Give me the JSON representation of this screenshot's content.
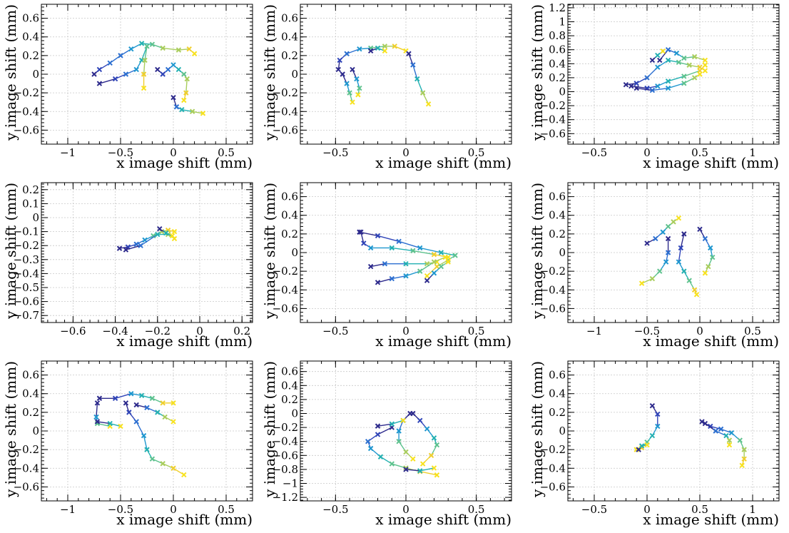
{
  "chart_data": [
    {
      "type": "scatter",
      "xlabel": "x image shift (mm)",
      "ylabel": "y image shift (mm)",
      "xlim": [
        -1.25,
        0.75
      ],
      "ylim": [
        -0.75,
        0.75
      ],
      "xticks": [
        -1,
        -0.5,
        0,
        0.5
      ],
      "yticks": [
        -0.6,
        -0.4,
        -0.2,
        0,
        0.2,
        0.4,
        0.6
      ],
      "grid": true,
      "tracks": [
        [
          [
            -0.75,
            0.0
          ],
          [
            -0.7,
            0.05
          ],
          [
            -0.6,
            0.12
          ],
          [
            -0.5,
            0.2
          ],
          [
            -0.4,
            0.27
          ],
          [
            -0.3,
            0.33
          ],
          [
            -0.2,
            0.32
          ],
          [
            -0.1,
            0.28
          ],
          [
            0.05,
            0.26
          ],
          [
            0.15,
            0.27
          ],
          [
            0.2,
            0.22
          ]
        ],
        [
          [
            -0.7,
            -0.1
          ],
          [
            -0.55,
            -0.05
          ],
          [
            -0.45,
            0.0
          ],
          [
            -0.35,
            0.05
          ],
          [
            -0.3,
            0.15
          ],
          [
            -0.25,
            0.3
          ],
          [
            -0.27,
            0.15
          ],
          [
            -0.28,
            0.0
          ],
          [
            -0.28,
            -0.15
          ]
        ],
        [
          [
            -0.15,
            0.05
          ],
          [
            -0.1,
            0.0
          ],
          [
            -0.05,
            0.05
          ],
          [
            0.0,
            0.1
          ],
          [
            0.05,
            0.05
          ],
          [
            0.1,
            0.0
          ],
          [
            0.13,
            -0.05
          ],
          [
            0.12,
            -0.2
          ],
          [
            0.1,
            -0.28
          ]
        ],
        [
          [
            0.0,
            -0.25
          ],
          [
            0.03,
            -0.35
          ],
          [
            0.08,
            -0.38
          ],
          [
            0.18,
            -0.4
          ],
          [
            0.28,
            -0.42
          ]
        ]
      ]
    },
    {
      "type": "scatter",
      "xlabel": "x image shift (mm)",
      "ylabel": "y image shift (mm)",
      "xlim": [
        -0.75,
        0.75
      ],
      "ylim": [
        -0.75,
        0.75
      ],
      "xticks": [
        -0.5,
        0,
        0.5
      ],
      "yticks": [
        -0.6,
        -0.4,
        -0.2,
        0,
        0.2,
        0.4,
        0.6
      ],
      "grid": true,
      "tracks": [
        [
          [
            -0.48,
            0.05
          ],
          [
            -0.47,
            0.15
          ],
          [
            -0.42,
            0.22
          ],
          [
            -0.33,
            0.27
          ],
          [
            -0.25,
            0.28
          ],
          [
            -0.15,
            0.3
          ],
          [
            -0.08,
            0.3
          ],
          [
            0.0,
            0.25
          ]
        ],
        [
          [
            -0.45,
            0.0
          ],
          [
            -0.42,
            -0.1
          ],
          [
            -0.4,
            -0.2
          ],
          [
            -0.38,
            -0.3
          ]
        ],
        [
          [
            -0.38,
            0.05
          ],
          [
            -0.35,
            -0.05
          ],
          [
            -0.33,
            -0.15
          ],
          [
            -0.34,
            -0.22
          ]
        ],
        [
          [
            0.02,
            0.22
          ],
          [
            0.05,
            0.1
          ],
          [
            0.08,
            -0.05
          ],
          [
            0.12,
            -0.2
          ],
          [
            0.16,
            -0.32
          ]
        ],
        [
          [
            -0.25,
            0.25
          ],
          [
            -0.2,
            0.28
          ],
          [
            -0.15,
            0.25
          ]
        ]
      ]
    },
    {
      "type": "scatter",
      "xlabel": "x image shift (mm)",
      "ylabel": "y image shift (mm)",
      "xlim": [
        -0.75,
        1.25
      ],
      "ylim": [
        -0.75,
        1.25
      ],
      "xticks": [
        -0.5,
        0,
        0.5,
        1
      ],
      "yticks": [
        -0.6,
        -0.4,
        -0.2,
        0,
        0.2,
        0.4,
        0.6,
        0.8,
        1,
        1.2
      ],
      "grid": true,
      "tracks": [
        [
          [
            -0.2,
            0.1
          ],
          [
            -0.1,
            0.12
          ],
          [
            0.0,
            0.2
          ],
          [
            0.1,
            0.35
          ],
          [
            0.2,
            0.45
          ],
          [
            0.3,
            0.42
          ],
          [
            0.4,
            0.38
          ],
          [
            0.5,
            0.35
          ],
          [
            0.55,
            0.3
          ]
        ],
        [
          [
            -0.15,
            0.08
          ],
          [
            0.0,
            0.05
          ],
          [
            0.1,
            0.08
          ],
          [
            0.2,
            0.15
          ],
          [
            0.35,
            0.22
          ],
          [
            0.5,
            0.3
          ],
          [
            0.55,
            0.38
          ]
        ],
        [
          [
            -0.1,
            0.05
          ],
          [
            0.05,
            0.02
          ],
          [
            0.2,
            0.05
          ],
          [
            0.35,
            0.12
          ],
          [
            0.45,
            0.2
          ],
          [
            0.5,
            0.25
          ]
        ],
        [
          [
            0.12,
            0.45
          ],
          [
            0.2,
            0.6
          ],
          [
            0.28,
            0.55
          ],
          [
            0.35,
            0.48
          ],
          [
            0.45,
            0.5
          ],
          [
            0.55,
            0.45
          ]
        ],
        [
          [
            0.05,
            0.45
          ],
          [
            0.1,
            0.52
          ],
          [
            0.15,
            0.58
          ]
        ]
      ]
    },
    {
      "type": "scatter",
      "xlabel": "x image shift (mm)",
      "ylabel": "y image shift (mm)",
      "xlim": [
        -0.75,
        0.25
      ],
      "ylim": [
        -0.75,
        0.25
      ],
      "xticks": [
        -0.6,
        -0.4,
        -0.2,
        0,
        0.2
      ],
      "yticks": [
        -0.7,
        -0.6,
        -0.5,
        -0.4,
        -0.3,
        -0.2,
        -0.1,
        0,
        0.1,
        0.2
      ],
      "grid": true,
      "tracks": [
        [
          [
            -0.38,
            -0.22
          ],
          [
            -0.34,
            -0.21
          ],
          [
            -0.3,
            -0.19
          ],
          [
            -0.26,
            -0.16
          ],
          [
            -0.22,
            -0.13
          ],
          [
            -0.18,
            -0.1
          ],
          [
            -0.15,
            -0.09
          ],
          [
            -0.12,
            -0.1
          ]
        ],
        [
          [
            -0.35,
            -0.23
          ],
          [
            -0.28,
            -0.2
          ],
          [
            -0.2,
            -0.12
          ],
          [
            -0.15,
            -0.12
          ],
          [
            -0.12,
            -0.15
          ]
        ],
        [
          [
            -0.19,
            -0.08
          ],
          [
            -0.16,
            -0.11
          ],
          [
            -0.13,
            -0.13
          ]
        ]
      ]
    },
    {
      "type": "scatter",
      "xlabel": "x image shift (mm)",
      "ylabel": "y image shift (mm)",
      "xlim": [
        -0.75,
        0.75
      ],
      "ylim": [
        -0.75,
        0.75
      ],
      "xticks": [
        -0.5,
        0,
        0.5
      ],
      "yticks": [
        -0.6,
        -0.4,
        -0.2,
        0,
        0.2,
        0.4,
        0.6
      ],
      "grid": true,
      "tracks": [
        [
          [
            -0.33,
            0.22
          ],
          [
            -0.2,
            0.18
          ],
          [
            -0.05,
            0.12
          ],
          [
            0.1,
            0.05
          ],
          [
            0.25,
            0.0
          ],
          [
            0.35,
            -0.03
          ],
          [
            0.3,
            -0.08
          ],
          [
            0.22,
            -0.15
          ],
          [
            0.15,
            -0.25
          ]
        ],
        [
          [
            -0.32,
            0.22
          ],
          [
            -0.3,
            0.1
          ],
          [
            -0.25,
            0.05
          ],
          [
            -0.1,
            0.05
          ],
          [
            0.05,
            0.02
          ],
          [
            0.2,
            -0.02
          ],
          [
            0.3,
            -0.05
          ]
        ],
        [
          [
            -0.25,
            -0.15
          ],
          [
            -0.15,
            -0.12
          ],
          [
            0.0,
            -0.12
          ],
          [
            0.15,
            -0.12
          ],
          [
            0.22,
            -0.1
          ]
        ],
        [
          [
            -0.2,
            -0.32
          ],
          [
            -0.1,
            -0.28
          ],
          [
            0.0,
            -0.25
          ],
          [
            0.1,
            -0.2
          ],
          [
            0.2,
            -0.1
          ],
          [
            0.28,
            -0.05
          ]
        ],
        [
          [
            0.15,
            -0.3
          ],
          [
            0.2,
            -0.22
          ],
          [
            0.25,
            -0.15
          ],
          [
            0.3,
            -0.1
          ]
        ]
      ]
    },
    {
      "type": "scatter",
      "xlabel": "x image shift (mm)",
      "ylabel": "y image shift (mm)",
      "xlim": [
        -1.25,
        0.75
      ],
      "ylim": [
        -0.75,
        0.75
      ],
      "xticks": [
        -1,
        -0.5,
        0,
        0.5
      ],
      "yticks": [
        -0.6,
        -0.4,
        -0.2,
        0,
        0.2,
        0.4,
        0.6
      ],
      "grid": true,
      "tracks": [
        [
          [
            -0.5,
            0.1
          ],
          [
            -0.42,
            0.15
          ],
          [
            -0.35,
            0.22
          ],
          [
            -0.3,
            0.28
          ],
          [
            -0.25,
            0.33
          ],
          [
            -0.2,
            0.37
          ]
        ],
        [
          [
            -0.3,
            0.15
          ],
          [
            -0.3,
            0.0
          ],
          [
            -0.32,
            -0.1
          ],
          [
            -0.38,
            -0.2
          ],
          [
            -0.45,
            -0.28
          ],
          [
            -0.55,
            -0.33
          ]
        ],
        [
          [
            -0.15,
            0.2
          ],
          [
            -0.18,
            0.05
          ],
          [
            -0.2,
            -0.1
          ],
          [
            -0.15,
            -0.2
          ],
          [
            -0.1,
            -0.3
          ],
          [
            -0.05,
            -0.4
          ],
          [
            -0.03,
            -0.45
          ]
        ],
        [
          [
            0.0,
            0.25
          ],
          [
            0.05,
            0.15
          ],
          [
            0.1,
            0.05
          ],
          [
            0.12,
            -0.05
          ],
          [
            0.08,
            -0.15
          ],
          [
            0.05,
            -0.22
          ]
        ]
      ]
    },
    {
      "type": "scatter",
      "xlabel": "x image shift (mm)",
      "ylabel": "y image shift (mm)",
      "xlim": [
        -1.25,
        0.75
      ],
      "ylim": [
        -0.75,
        0.75
      ],
      "xticks": [
        -1,
        -0.5,
        0,
        0.5
      ],
      "yticks": [
        -0.6,
        -0.4,
        -0.2,
        0,
        0.2,
        0.4,
        0.6
      ],
      "grid": true,
      "tracks": [
        [
          [
            -0.7,
            0.35
          ],
          [
            -0.55,
            0.35
          ],
          [
            -0.4,
            0.4
          ],
          [
            -0.3,
            0.38
          ],
          [
            -0.2,
            0.35
          ],
          [
            -0.1,
            0.3
          ],
          [
            0.0,
            0.3
          ]
        ],
        [
          [
            -0.72,
            0.3
          ],
          [
            -0.73,
            0.15
          ],
          [
            -0.72,
            0.08
          ],
          [
            -0.6,
            0.05
          ]
        ],
        [
          [
            -0.45,
            0.3
          ],
          [
            -0.42,
            0.2
          ],
          [
            -0.35,
            0.1
          ],
          [
            -0.28,
            -0.05
          ],
          [
            -0.25,
            -0.2
          ],
          [
            -0.2,
            -0.3
          ],
          [
            -0.1,
            -0.35
          ],
          [
            0.0,
            -0.4
          ],
          [
            0.1,
            -0.47
          ]
        ],
        [
          [
            -0.35,
            0.28
          ],
          [
            -0.25,
            0.25
          ],
          [
            -0.15,
            0.2
          ],
          [
            -0.08,
            0.15
          ],
          [
            0.0,
            0.1
          ]
        ],
        [
          [
            -0.72,
            0.1
          ],
          [
            -0.6,
            0.08
          ],
          [
            -0.5,
            0.05
          ]
        ]
      ]
    },
    {
      "type": "scatter",
      "xlabel": "x image shift (mm)",
      "ylabel": "y image shift (mm)",
      "xlim": [
        -0.75,
        0.75
      ],
      "ylim": [
        -1.25,
        0.75
      ],
      "xticks": [
        -0.5,
        0,
        0.5
      ],
      "yticks": [
        -1.2,
        -1,
        -0.8,
        -0.6,
        -0.4,
        -0.2,
        0,
        0.2,
        0.4,
        0.6
      ],
      "grid": true,
      "tracks": [
        [
          [
            -0.1,
            -0.2
          ],
          [
            -0.2,
            -0.3
          ],
          [
            -0.27,
            -0.4
          ],
          [
            -0.25,
            -0.5
          ],
          [
            -0.18,
            -0.62
          ],
          [
            -0.1,
            -0.72
          ],
          [
            0.0,
            -0.78
          ],
          [
            0.1,
            -0.83
          ],
          [
            0.22,
            -0.88
          ]
        ],
        [
          [
            0.03,
            0.0
          ],
          [
            -0.02,
            -0.1
          ],
          [
            -0.05,
            -0.25
          ],
          [
            -0.05,
            -0.4
          ],
          [
            0.0,
            -0.55
          ],
          [
            0.05,
            -0.65
          ]
        ],
        [
          [
            0.05,
            0.0
          ],
          [
            0.1,
            -0.1
          ],
          [
            0.15,
            -0.22
          ],
          [
            0.2,
            -0.35
          ],
          [
            0.22,
            -0.45
          ],
          [
            0.18,
            -0.6
          ],
          [
            0.12,
            -0.72
          ]
        ],
        [
          [
            -0.2,
            -0.18
          ],
          [
            -0.1,
            -0.15
          ],
          [
            -0.02,
            -0.1
          ]
        ],
        [
          [
            0.0,
            -0.8
          ],
          [
            0.1,
            -0.82
          ],
          [
            0.2,
            -0.78
          ]
        ]
      ]
    },
    {
      "type": "scatter",
      "xlabel": "x image shift (mm)",
      "ylabel": "y image shift (mm)",
      "xlim": [
        -0.75,
        1.25
      ],
      "ylim": [
        -0.75,
        0.75
      ],
      "xticks": [
        -0.5,
        0,
        0.5,
        1
      ],
      "yticks": [
        -0.6,
        -0.4,
        -0.2,
        0,
        0.2,
        0.4,
        0.6
      ],
      "grid": true,
      "tracks": [
        [
          [
            0.05,
            0.27
          ],
          [
            0.1,
            0.18
          ],
          [
            0.1,
            0.05
          ],
          [
            0.05,
            -0.05
          ],
          [
            0.0,
            -0.12
          ],
          [
            -0.05,
            -0.18
          ],
          [
            -0.1,
            -0.2
          ]
        ],
        [
          [
            0.52,
            0.1
          ],
          [
            0.6,
            0.05
          ],
          [
            0.7,
            0.02
          ],
          [
            0.8,
            -0.02
          ],
          [
            0.88,
            -0.1
          ],
          [
            0.92,
            -0.2
          ],
          [
            0.92,
            -0.3
          ],
          [
            0.9,
            -0.37
          ]
        ],
        [
          [
            0.55,
            0.08
          ],
          [
            0.65,
            0.0
          ],
          [
            0.75,
            -0.05
          ],
          [
            0.78,
            -0.1
          ],
          [
            0.78,
            -0.15
          ]
        ],
        [
          [
            -0.08,
            -0.2
          ],
          [
            -0.05,
            -0.16
          ],
          [
            0.0,
            -0.15
          ]
        ]
      ]
    }
  ]
}
